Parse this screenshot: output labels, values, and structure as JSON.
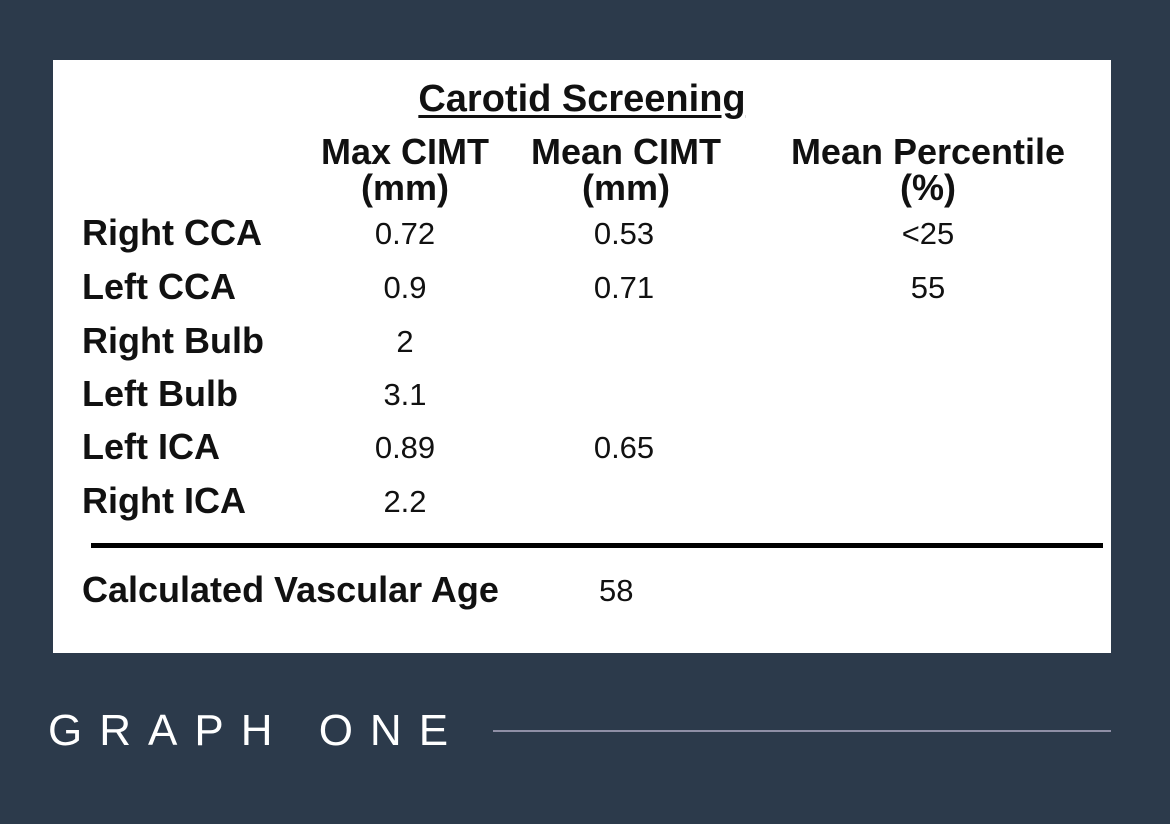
{
  "title": "Carotid Screening",
  "columns": [
    {
      "line1": "Max CIMT",
      "line2": "(mm)"
    },
    {
      "line1": "Mean CIMT",
      "line2": "(mm)"
    },
    {
      "line1": "Mean Percentile",
      "line2": "(%)"
    }
  ],
  "rows": [
    {
      "label": "Right CCA",
      "max": "0.72",
      "mean": "0.53",
      "percentile": "<25"
    },
    {
      "label": "Left CCA",
      "max": "0.9",
      "mean": "0.71",
      "percentile": "55"
    },
    {
      "label": "Right Bulb",
      "max": "2",
      "mean": "",
      "percentile": ""
    },
    {
      "label": "Left Bulb",
      "max": "3.1",
      "mean": "",
      "percentile": ""
    },
    {
      "label": "Left ICA",
      "max": "0.89",
      "mean": "0.65",
      "percentile": ""
    },
    {
      "label": "Right ICA",
      "max": "2.2",
      "mean": "",
      "percentile": ""
    }
  ],
  "footer": {
    "label": "Calculated Vascular Age",
    "value": "58"
  },
  "caption": "GRAPH ONE",
  "colors": {
    "background": "#2c3a4b",
    "card": "#ffffff",
    "rule": "#8f8fa6"
  }
}
